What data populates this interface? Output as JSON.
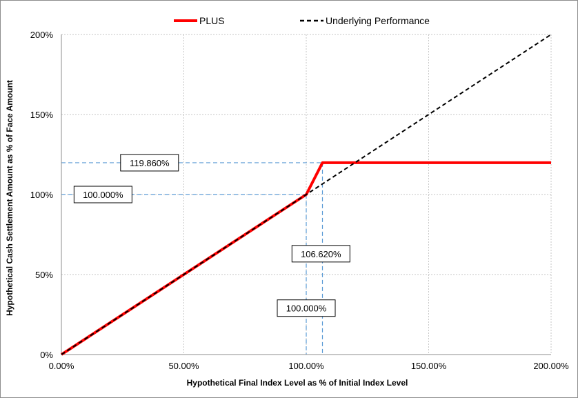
{
  "chart_data": {
    "type": "line",
    "title": "",
    "xlabel": "Hypothetical Final Index Level as % of Initial Index Level",
    "ylabel": "Hypothetical Cash Settlement Amount as % of Face Amount",
    "xlim": [
      0,
      200
    ],
    "ylim": [
      0,
      200
    ],
    "x_ticks": [
      0,
      50,
      100,
      150,
      200
    ],
    "y_ticks": [
      0,
      50,
      100,
      150,
      200
    ],
    "x_tick_labels": [
      "0.00%",
      "50.00%",
      "100.00%",
      "150.00%",
      "200.00%"
    ],
    "y_tick_labels": [
      "0%",
      "50%",
      "100%",
      "150%",
      "200%"
    ],
    "grid": true,
    "legend_position": "top-center",
    "series": [
      {
        "name": "PLUS",
        "color": "#ff0000",
        "style": "solid",
        "x": [
          0,
          100,
          106.62,
          200
        ],
        "y": [
          0,
          100,
          119.86,
          119.86
        ]
      },
      {
        "name": "Underlying Performance",
        "color": "#000000",
        "style": "dashed",
        "x": [
          0,
          200
        ],
        "y": [
          0,
          200
        ]
      }
    ],
    "reference_lines": [
      {
        "orientation": "horizontal",
        "value": 100,
        "color": "#5b9bd5"
      },
      {
        "orientation": "horizontal",
        "value": 119.86,
        "color": "#5b9bd5"
      },
      {
        "orientation": "vertical",
        "value": 100,
        "color": "#5b9bd5"
      },
      {
        "orientation": "vertical",
        "value": 106.62,
        "color": "#5b9bd5"
      }
    ],
    "annotations": [
      {
        "text": "119.860%",
        "x": 36,
        "y": 119.86
      },
      {
        "text": "100.000%",
        "x": 17,
        "y": 100
      },
      {
        "text": "106.620%",
        "x": 106,
        "y": 63
      },
      {
        "text": "100.000%",
        "x": 100,
        "y": 29
      }
    ]
  }
}
